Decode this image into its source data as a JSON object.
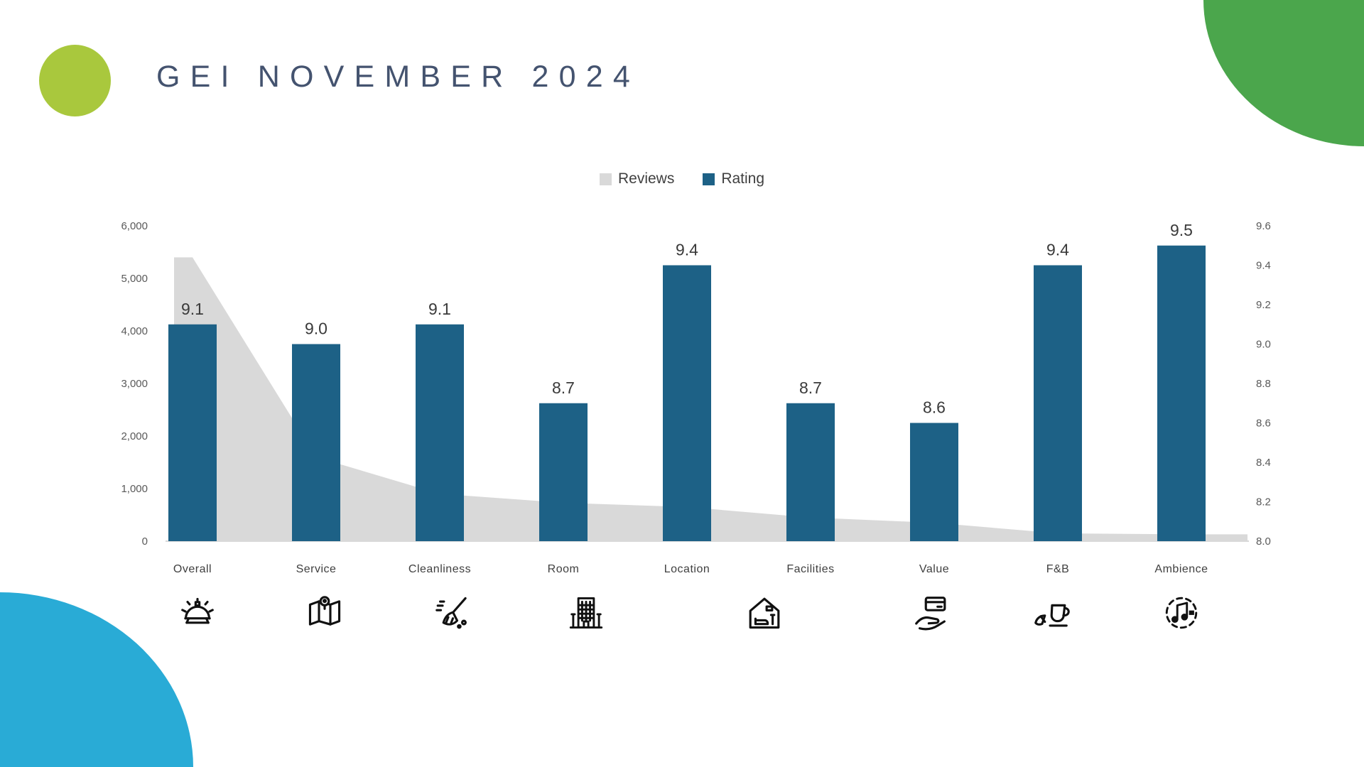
{
  "title": "GEI NOVEMBER 2024",
  "legend": {
    "items": [
      {
        "label": "Reviews",
        "color": "#d9d9d9"
      },
      {
        "label": "Rating",
        "color": "#1d6186"
      }
    ]
  },
  "chart_data": {
    "type": "combo",
    "categories": [
      "Overall",
      "Service",
      "Cleanliness",
      "Room",
      "Location",
      "Facilities",
      "Value",
      "F&B",
      "Ambience"
    ],
    "series": [
      {
        "name": "Reviews",
        "type": "area",
        "axis": "left",
        "color": "#d9d9d9",
        "values": [
          5400,
          1600,
          900,
          730,
          650,
          450,
          350,
          150,
          130
        ]
      },
      {
        "name": "Rating",
        "type": "bar",
        "axis": "right",
        "color": "#1d6186",
        "values": [
          9.1,
          9.0,
          9.1,
          8.7,
          9.4,
          8.7,
          8.6,
          9.4,
          9.5
        ],
        "labels": [
          "9.1",
          "9.0",
          "9.1",
          "8.7",
          "9.4",
          "8.7",
          "8.6",
          "9.4",
          "9.5"
        ]
      }
    ],
    "left_axis": {
      "min": 0,
      "max": 6000,
      "step": 1000,
      "tick_labels": [
        "0",
        "1,000",
        "2,000",
        "3,000",
        "4,000",
        "5,000",
        "6,000"
      ]
    },
    "right_axis": {
      "min": 8.0,
      "max": 9.6,
      "step": 0.2,
      "tick_labels": [
        "8.0",
        "8.2",
        "8.4",
        "8.6",
        "8.8",
        "9.0",
        "9.2",
        "9.4",
        "9.6"
      ]
    },
    "grid": false,
    "legend_position": "top",
    "baseline_color": "#d9d9d9",
    "tick_label_color": "#595959",
    "category_label_color": "#3f3f3f",
    "value_label_color": "#3a3a3a"
  },
  "icons": [
    {
      "name": "service-bell"
    },
    {
      "name": "map-pin"
    },
    {
      "name": "broom"
    },
    {
      "name": "hotel-building"
    },
    {
      "name": "house-interior"
    },
    {
      "name": "card-in-hand"
    },
    {
      "name": "coffee-cup"
    },
    {
      "name": "music-notes"
    }
  ],
  "decor": {
    "green_circle_color": "#a9c83d",
    "corner_green_color": "#4ba64c",
    "corner_blue_color": "#29abd6"
  }
}
